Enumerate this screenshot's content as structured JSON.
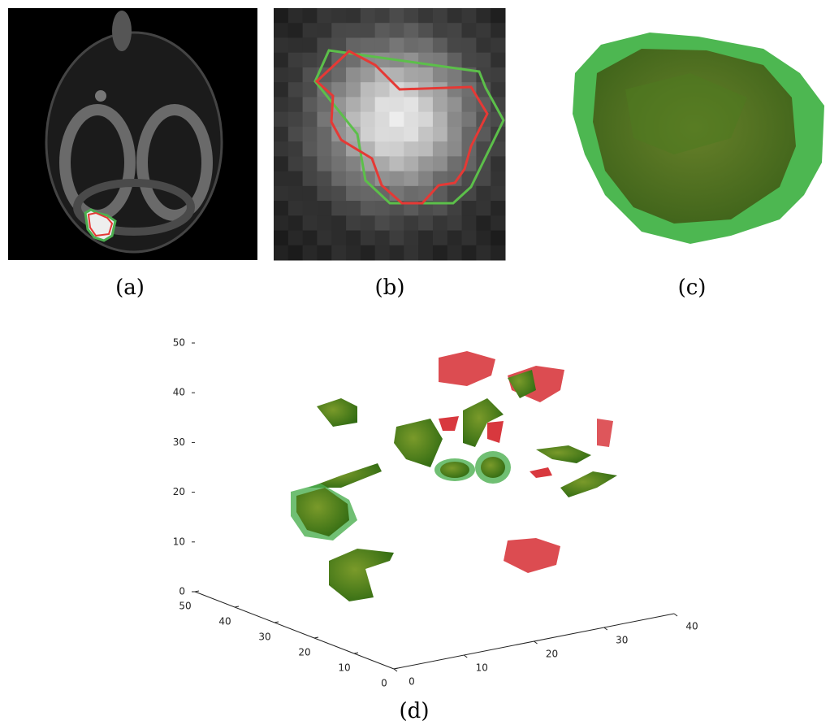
{
  "figure": {
    "captions": [
      "(a)",
      "(b)",
      "(c)",
      "(d)"
    ],
    "panel_d": {
      "z_ticks": [
        0,
        10,
        20,
        30,
        40,
        50
      ],
      "y_ticks": [
        0,
        10,
        20,
        30,
        40,
        50
      ],
      "x_ticks": [
        0,
        10,
        20,
        30,
        40
      ]
    }
  }
}
